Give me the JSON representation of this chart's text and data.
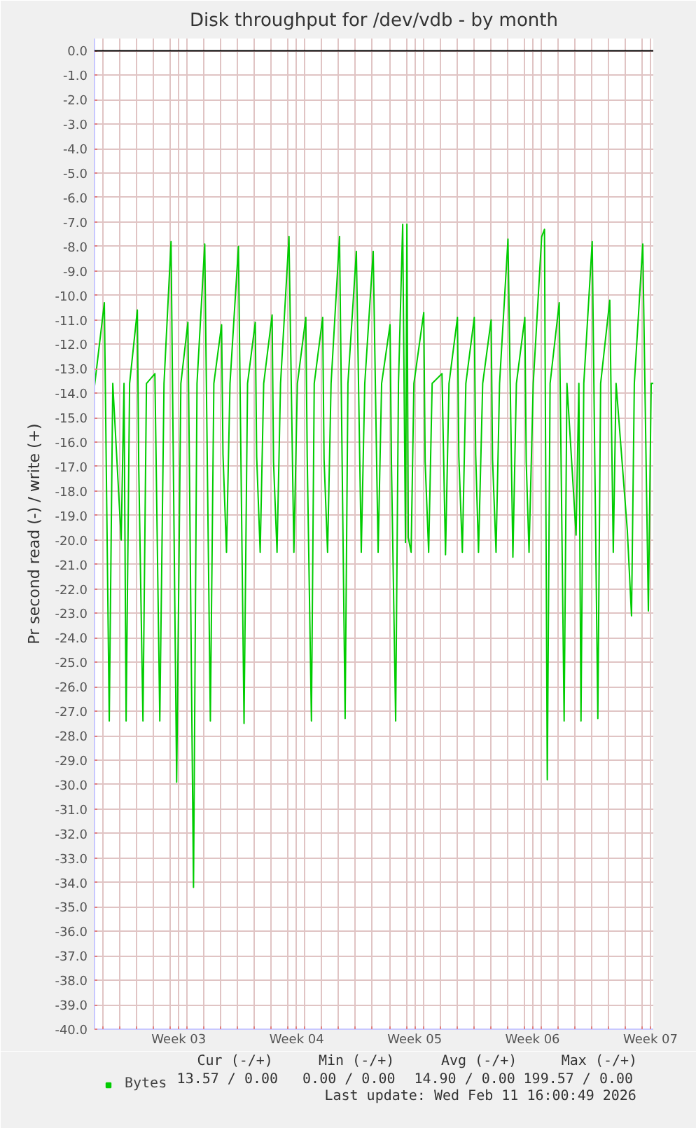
{
  "chart_data": {
    "type": "line",
    "title": "Disk throughput for /dev/vdb - by month",
    "ylabel": "Pr second read (-) / write (+)",
    "x": [
      "2026-01-09T12:00",
      "2026-01-10T02:00",
      "2026-01-10T09:00",
      "2026-01-10T14:00",
      "2026-01-11T02:00",
      "2026-01-11T06:00",
      "2026-01-11T09:00",
      "2026-01-11T14:00",
      "2026-01-12T01:00",
      "2026-01-12T03:00",
      "2026-01-12T09:00",
      "2026-01-12T14:00",
      "2026-01-13T02:00",
      "2026-01-13T09:00",
      "2026-01-13T15:00",
      "2026-01-14T01:00",
      "2026-01-14T09:00",
      "2026-01-14T15:00",
      "2026-01-15T01:00",
      "2026-01-15T03:00",
      "2026-01-15T09:00",
      "2026-01-15T14:00",
      "2026-01-16T01:00",
      "2026-01-16T09:00",
      "2026-01-16T14:00",
      "2026-01-17T01:00",
      "2026-01-17T03:00",
      "2026-01-17T08:00",
      "2026-01-17T13:00",
      "2026-01-18T01:00",
      "2026-01-18T09:00",
      "2026-01-18T14:00",
      "2026-01-19T01:00",
      "2026-01-19T03:00",
      "2026-01-19T08:00",
      "2026-01-19T13:00",
      "2026-01-20T01:00",
      "2026-01-20T03:00",
      "2026-01-20T08:00",
      "2026-01-20T13:00",
      "2026-01-21T01:00",
      "2026-01-21T08:00",
      "2026-01-21T13:00",
      "2026-01-22T01:00",
      "2026-01-22T03:00",
      "2026-01-22T09:00",
      "2026-01-22T13:00",
      "2026-01-23T01:00",
      "2026-01-23T03:00",
      "2026-01-23T08:00",
      "2026-01-23T13:00",
      "2026-01-24T01:00",
      "2026-01-24T09:00",
      "2026-01-24T13:00",
      "2026-01-25T01:00",
      "2026-01-25T08:00",
      "2026-01-25T13:00",
      "2026-01-26T01:00",
      "2026-01-26T08:00",
      "2026-01-26T13:00",
      "2026-01-27T01:00",
      "2026-01-27T03:00",
      "2026-01-27T09:00",
      "2026-01-27T13:00",
      "2026-01-27T19:00",
      "2026-01-27T23:00",
      "2026-01-28T01:00",
      "2026-01-28T03:00",
      "2026-01-28T07:00",
      "2026-01-28T11:00",
      "2026-01-29T01:00",
      "2026-01-29T03:00",
      "2026-01-29T08:00",
      "2026-01-29T13:00",
      "2026-01-30T03:00",
      "2026-01-30T08:00",
      "2026-01-30T13:00",
      "2026-01-31T01:00",
      "2026-01-31T03:00",
      "2026-01-31T08:00",
      "2026-01-31T13:00",
      "2026-02-01T01:00",
      "2026-02-01T03:00",
      "2026-02-01T07:00",
      "2026-02-01T13:00",
      "2026-02-02T01:00",
      "2026-02-02T03:00",
      "2026-02-02T08:00",
      "2026-02-02T13:00",
      "2026-02-03T01:00",
      "2026-02-03T08:00",
      "2026-02-03T13:00",
      "2026-02-04T01:00",
      "2026-02-04T03:00",
      "2026-02-04T07:00",
      "2026-02-04T13:00",
      "2026-02-05T01:00",
      "2026-02-05T05:00",
      "2026-02-05T09:00",
      "2026-02-05T13:00",
      "2026-02-06T02:00",
      "2026-02-06T09:00",
      "2026-02-06T13:00",
      "2026-02-07T02:00",
      "2026-02-07T06:00",
      "2026-02-07T09:00",
      "2026-02-07T13:00",
      "2026-02-08T01:00",
      "2026-02-08T09:00",
      "2026-02-08T13:00",
      "2026-02-09T02:00",
      "2026-02-09T07:00",
      "2026-02-09T11:00",
      "2026-02-10T03:00",
      "2026-02-10T09:00",
      "2026-02-10T13:00",
      "2026-02-11T01:00",
      "2026-02-11T09:00",
      "2026-02-11T13:00",
      "2026-02-11T16:00"
    ],
    "series": [
      {
        "name": "Bytes",
        "color": "#00cc00",
        "values": [
          -13.7,
          -10.3,
          -27.4,
          -13.6,
          -20.0,
          -13.6,
          -27.4,
          -13.6,
          -10.6,
          -17.0,
          -27.4,
          -13.6,
          -13.2,
          -27.4,
          -13.6,
          -7.8,
          -29.9,
          -13.6,
          -11.1,
          -16.5,
          -34.2,
          -13.6,
          -7.9,
          -27.4,
          -13.6,
          -11.2,
          -16.5,
          -20.5,
          -13.6,
          -8.0,
          -27.5,
          -13.6,
          -11.1,
          -16.6,
          -20.5,
          -13.6,
          -10.8,
          -16.8,
          -20.5,
          -13.6,
          -7.6,
          -20.5,
          -13.6,
          -10.9,
          -16.6,
          -27.4,
          -13.6,
          -10.9,
          -16.7,
          -20.5,
          -13.6,
          -7.6,
          -27.3,
          -13.6,
          -8.2,
          -20.5,
          -13.6,
          -8.2,
          -20.5,
          -13.6,
          -11.2,
          -16.9,
          -27.4,
          -13.6,
          -7.1,
          -20.1,
          -7.1,
          -19.9,
          -20.5,
          -13.6,
          -10.7,
          -16.8,
          -20.5,
          -13.6,
          -13.2,
          -20.6,
          -13.6,
          -10.9,
          -16.6,
          -20.5,
          -13.6,
          -10.9,
          -16.5,
          -20.5,
          -13.6,
          -11.0,
          -16.7,
          -20.5,
          -13.6,
          -7.7,
          -20.7,
          -13.6,
          -10.9,
          -16.8,
          -20.5,
          -13.6,
          -7.6,
          -7.3,
          -29.8,
          -13.6,
          -10.3,
          -27.4,
          -13.6,
          -19.8,
          -13.6,
          -27.4,
          -13.6,
          -7.8,
          -27.3,
          -13.6,
          -10.2,
          -20.5,
          -13.6,
          -19.6,
          -23.1,
          -13.6,
          -7.9,
          -22.9,
          -13.6,
          -13.6
        ]
      }
    ],
    "xlim": [
      "2026-01-09T12:00",
      "2026-02-11T16:00"
    ],
    "xticks": [
      {
        "value": "2026-01-10",
        "label": null
      },
      {
        "value": "2026-01-11",
        "label": null
      },
      {
        "value": "2026-01-12",
        "label": null
      },
      {
        "value": "2026-01-13",
        "label": null
      },
      {
        "value": "2026-01-14",
        "label": null
      },
      {
        "value": "2026-01-14T12:00",
        "label": "Week 03"
      },
      {
        "value": "2026-01-15",
        "label": null
      },
      {
        "value": "2026-01-16",
        "label": null
      },
      {
        "value": "2026-01-17",
        "label": null
      },
      {
        "value": "2026-01-18",
        "label": null
      },
      {
        "value": "2026-01-19",
        "label": null
      },
      {
        "value": "2026-01-20",
        "label": null
      },
      {
        "value": "2026-01-21",
        "label": null
      },
      {
        "value": "2026-01-21T12:00",
        "label": "Week 04"
      },
      {
        "value": "2026-01-22",
        "label": null
      },
      {
        "value": "2026-01-23",
        "label": null
      },
      {
        "value": "2026-01-24",
        "label": null
      },
      {
        "value": "2026-01-25",
        "label": null
      },
      {
        "value": "2026-01-26",
        "label": null
      },
      {
        "value": "2026-01-27",
        "label": null
      },
      {
        "value": "2026-01-28",
        "label": null
      },
      {
        "value": "2026-01-28T12:00",
        "label": "Week 05"
      },
      {
        "value": "2026-01-29",
        "label": null
      },
      {
        "value": "2026-01-30",
        "label": null
      },
      {
        "value": "2026-01-31",
        "label": null
      },
      {
        "value": "2026-02-01",
        "label": null
      },
      {
        "value": "2026-02-02",
        "label": null
      },
      {
        "value": "2026-02-03",
        "label": null
      },
      {
        "value": "2026-02-04",
        "label": null
      },
      {
        "value": "2026-02-04T12:00",
        "label": "Week 06"
      },
      {
        "value": "2026-02-05",
        "label": null
      },
      {
        "value": "2026-02-06",
        "label": null
      },
      {
        "value": "2026-02-07",
        "label": null
      },
      {
        "value": "2026-02-08",
        "label": null
      },
      {
        "value": "2026-02-09",
        "label": null
      },
      {
        "value": "2026-02-10",
        "label": null
      },
      {
        "value": "2026-02-11",
        "label": null
      },
      {
        "value": "2026-02-11T12:00",
        "label": "Week 07"
      }
    ],
    "ylim": [
      -40,
      0.5
    ],
    "yticks": [
      {
        "value": 0,
        "label": "0.0"
      },
      {
        "value": -1,
        "label": "-1.0"
      },
      {
        "value": -2,
        "label": "-2.0"
      },
      {
        "value": -3,
        "label": "-3.0"
      },
      {
        "value": -4,
        "label": "-4.0"
      },
      {
        "value": -5,
        "label": "-5.0"
      },
      {
        "value": -6,
        "label": "-6.0"
      },
      {
        "value": -7,
        "label": "-7.0"
      },
      {
        "value": -8,
        "label": "-8.0"
      },
      {
        "value": -9,
        "label": "-9.0"
      },
      {
        "value": -10,
        "label": "-10.0"
      },
      {
        "value": -11,
        "label": "-11.0"
      },
      {
        "value": -12,
        "label": "-12.0"
      },
      {
        "value": -13,
        "label": "-13.0"
      },
      {
        "value": -14,
        "label": "-14.0"
      },
      {
        "value": -15,
        "label": "-15.0"
      },
      {
        "value": -16,
        "label": "-16.0"
      },
      {
        "value": -17,
        "label": "-17.0"
      },
      {
        "value": -18,
        "label": "-18.0"
      },
      {
        "value": -19,
        "label": "-19.0"
      },
      {
        "value": -20,
        "label": "-20.0"
      },
      {
        "value": -21,
        "label": "-21.0"
      },
      {
        "value": -22,
        "label": "-22.0"
      },
      {
        "value": -23,
        "label": "-23.0"
      },
      {
        "value": -24,
        "label": "-24.0"
      },
      {
        "value": -25,
        "label": "-25.0"
      },
      {
        "value": -26,
        "label": "-26.0"
      },
      {
        "value": -27,
        "label": "-27.0"
      },
      {
        "value": -28,
        "label": "-28.0"
      },
      {
        "value": -29,
        "label": "-29.0"
      },
      {
        "value": -30,
        "label": "-30.0"
      },
      {
        "value": -31,
        "label": "-31.0"
      },
      {
        "value": -32,
        "label": "-32.0"
      },
      {
        "value": -33,
        "label": "-33.0"
      },
      {
        "value": -34,
        "label": "-34.0"
      },
      {
        "value": -35,
        "label": "-35.0"
      },
      {
        "value": -36,
        "label": "-36.0"
      },
      {
        "value": -37,
        "label": "-37.0"
      },
      {
        "value": -38,
        "label": "-38.0"
      },
      {
        "value": -39,
        "label": "-39.0"
      },
      {
        "value": -40,
        "label": "-40.0"
      }
    ],
    "ref_lines": [
      {
        "axis": "y",
        "value": 0,
        "color": "#000000"
      }
    ],
    "grid": true,
    "legend": "bottom left",
    "marker": "none",
    "line_style": "solid",
    "annotations": [
      "Cur (-/+)",
      "Min (-/+)",
      "Avg (-/+)",
      "Max (-/+)",
      "13.57 /  0.00",
      "0.00 /  0.00",
      "14.90 /  0.00",
      "199.57 /  0.00",
      "Last update: Wed Feb 11 16:00:49 2026"
    ]
  }
}
